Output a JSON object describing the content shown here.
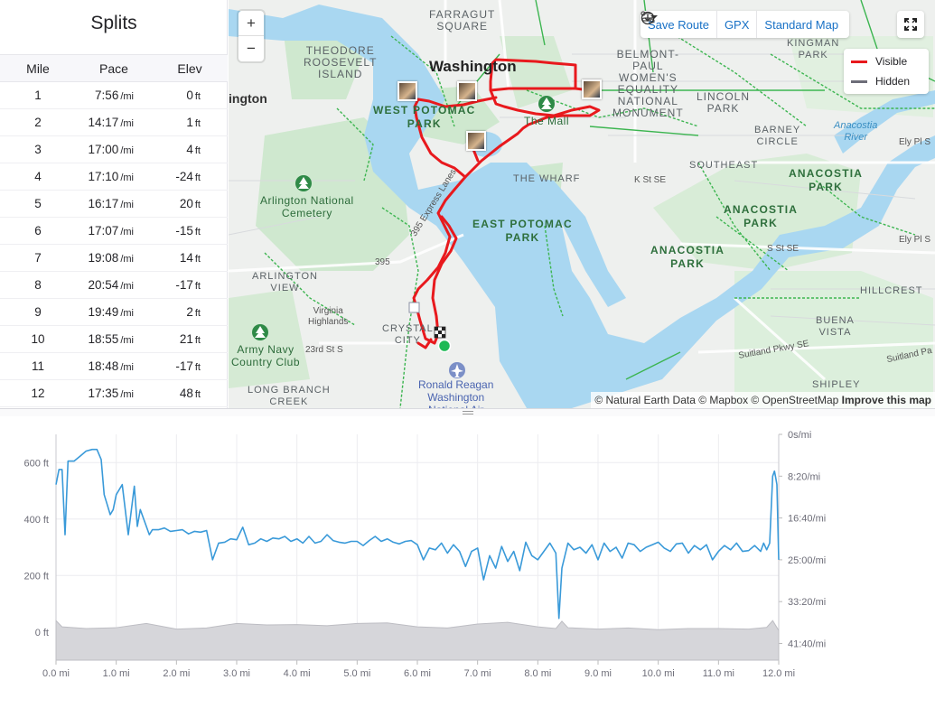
{
  "splits": {
    "title": "Splits",
    "headers": [
      "Mile",
      "Pace",
      "Elev"
    ],
    "pace_unit": "/mi",
    "elev_unit": "ft",
    "rows": [
      {
        "mile": "1",
        "pace": "7:56",
        "elev": "0"
      },
      {
        "mile": "2",
        "pace": "14:17",
        "elev": "1"
      },
      {
        "mile": "3",
        "pace": "17:00",
        "elev": "4"
      },
      {
        "mile": "4",
        "pace": "17:10",
        "elev": "-24"
      },
      {
        "mile": "5",
        "pace": "16:17",
        "elev": "20"
      },
      {
        "mile": "6",
        "pace": "17:07",
        "elev": "-15"
      },
      {
        "mile": "7",
        "pace": "19:08",
        "elev": "14"
      },
      {
        "mile": "8",
        "pace": "20:54",
        "elev": "-17"
      },
      {
        "mile": "9",
        "pace": "19:49",
        "elev": "2"
      },
      {
        "mile": "10",
        "pace": "18:55",
        "elev": "21"
      },
      {
        "mile": "11",
        "pace": "18:48",
        "elev": "-17"
      },
      {
        "mile": "12",
        "pace": "17:35",
        "elev": "48"
      }
    ]
  },
  "map": {
    "zoom_in": "+",
    "zoom_out": "−",
    "toolbar": {
      "save_route": "Save Route",
      "gpx": "GPX",
      "map_style": "Standard Map"
    },
    "legend": {
      "visible": "Visible",
      "hidden": "Hidden",
      "visible_color": "#e8191d",
      "hidden_color": "#6d6d78"
    },
    "attribution": {
      "text": "© Natural Earth Data © Mapbox © OpenStreetMap",
      "improve": "Improve this map"
    },
    "labels": {
      "farragut": "FARRAGUT\nSQUARE",
      "washington": "Washington",
      "theodore": "THEODORE\nROOSEVELT\nISLAND",
      "belmont": "BELMONT-\nPAUL\nWOMEN'S\nEQUALITY\nNATIONAL\nMONUMENT",
      "kingman": "KINGMAN\nPARK",
      "lincoln": "LINCOLN\nPARK",
      "west_potomac": "WEST POTOMAC\nPARK",
      "the_mall": "The Mall",
      "barney": "BARNEY\nCIRCLE",
      "anacostia_river": "Anacostia\nRiver",
      "ington": "ington",
      "the_wharf": "THE WHARF",
      "southeast": "SOUTHEAST",
      "k_st": "K St SE",
      "anacostia_park1": "ANACOSTIA\nPARK",
      "anacostia_park2": "ANACOSTIA\nPARK",
      "anacostia_park3": "ANACOSTIA\nPARK",
      "arlington_cem": "Arlington National\nCemetery",
      "east_potomac": "EAST POTOMAC\nPARK",
      "express": "395 Express Lanes",
      "route395": "395",
      "s_st": "S St SE",
      "arlington_view": "ARLINGTON\nVIEW",
      "virginia": "Virginia\nHighlands",
      "crystal": "CRYSTAL\nCITY",
      "hillcrest": "HILLCREST",
      "buena": "BUENA\nVISTA",
      "suitland": "Suitland Pkwy SE",
      "suitland2": "Suitland Pa",
      "army_navy": "Army Navy\nCountry Club",
      "st23": "23rd St S",
      "long_branch": "LONG BRANCH\nCREEK",
      "reagan": "Ronald Reagan\nWashington\nNational Air",
      "shipley": "SHIPLEY",
      "ely": "Ely Pl S",
      "ely2": "Ely Pl S"
    }
  },
  "chart_data": {
    "type": "line",
    "x_label_ticks": [
      "0.0 mi",
      "1.0 mi",
      "2.0 mi",
      "3.0 mi",
      "4.0 mi",
      "5.0 mi",
      "6.0 mi",
      "7.0 mi",
      "8.0 mi",
      "9.0 mi",
      "10.0 mi",
      "11.0 mi",
      "12.0 mi"
    ],
    "xlim": [
      0,
      12.0
    ],
    "y_left": {
      "ticks": [
        "0 ft",
        "200 ft",
        "400 ft",
        "600 ft"
      ],
      "range": [
        -100,
        700
      ]
    },
    "y_right": {
      "ticks": [
        "0s/mi",
        "8:20/mi",
        "16:40/mi",
        "25:00/mi",
        "33:20/mi",
        "41:40/mi"
      ],
      "range_seconds_per_mi": [
        0,
        2700
      ]
    },
    "series": [
      {
        "kind": "pace",
        "color": "#3a9ad9",
        "x": [
          0.0,
          0.05,
          0.1,
          0.15,
          0.2,
          0.3,
          0.4,
          0.5,
          0.6,
          0.68,
          0.75,
          0.8,
          0.85,
          0.9,
          0.95,
          1.0,
          1.1,
          1.2,
          1.3,
          1.35,
          1.4,
          1.5,
          1.55,
          1.6,
          1.7,
          1.8,
          1.9,
          2.0,
          2.1,
          2.2,
          2.3,
          2.4,
          2.5,
          2.6,
          2.7,
          2.8,
          2.9,
          3.0,
          3.1,
          3.2,
          3.3,
          3.4,
          3.5,
          3.6,
          3.7,
          3.8,
          3.9,
          4.0,
          4.1,
          4.2,
          4.3,
          4.4,
          4.5,
          4.6,
          4.7,
          4.8,
          4.9,
          5.0,
          5.1,
          5.2,
          5.3,
          5.4,
          5.5,
          5.6,
          5.7,
          5.8,
          5.9,
          6.0,
          6.1,
          6.2,
          6.3,
          6.4,
          6.5,
          6.6,
          6.7,
          6.8,
          6.9,
          7.0,
          7.1,
          7.2,
          7.3,
          7.4,
          7.5,
          7.6,
          7.7,
          7.8,
          7.9,
          8.0,
          8.1,
          8.2,
          8.3,
          8.35,
          8.4,
          8.5,
          8.6,
          8.7,
          8.8,
          8.9,
          9.0,
          9.1,
          9.2,
          9.3,
          9.4,
          9.5,
          9.6,
          9.7,
          9.8,
          9.9,
          10.0,
          10.1,
          10.2,
          10.3,
          10.4,
          10.5,
          10.6,
          10.7,
          10.8,
          10.9,
          11.0,
          11.1,
          11.2,
          11.3,
          11.4,
          11.5,
          11.6,
          11.7,
          11.75,
          11.8,
          11.85,
          11.9,
          11.93,
          11.95,
          11.97,
          12.0
        ],
        "y_sec_per_mi": [
          600,
          420,
          420,
          1200,
          320,
          320,
          260,
          200,
          180,
          180,
          300,
          720,
          840,
          960,
          900,
          720,
          600,
          1200,
          620,
          1100,
          900,
          1100,
          1200,
          1140,
          1140,
          1120,
          1160,
          1150,
          1140,
          1190,
          1160,
          1170,
          1150,
          1500,
          1300,
          1290,
          1250,
          1260,
          1110,
          1320,
          1300,
          1250,
          1280,
          1240,
          1250,
          1220,
          1280,
          1250,
          1300,
          1220,
          1300,
          1280,
          1200,
          1270,
          1290,
          1300,
          1280,
          1280,
          1330,
          1270,
          1220,
          1280,
          1250,
          1290,
          1310,
          1280,
          1270,
          1320,
          1500,
          1360,
          1380,
          1300,
          1420,
          1320,
          1400,
          1580,
          1400,
          1360,
          1740,
          1450,
          1600,
          1340,
          1520,
          1400,
          1630,
          1290,
          1450,
          1500,
          1400,
          1300,
          1420,
          2200,
          1600,
          1300,
          1380,
          1350,
          1420,
          1320,
          1500,
          1300,
          1400,
          1350,
          1480,
          1300,
          1320,
          1400,
          1350,
          1320,
          1290,
          1360,
          1400,
          1310,
          1300,
          1420,
          1330,
          1380,
          1320,
          1500,
          1400,
          1330,
          1380,
          1300,
          1400,
          1390,
          1330,
          1400,
          1300,
          1380,
          1300,
          500,
          440,
          520,
          600,
          1500,
          2700,
          1800,
          660
        ]
      },
      {
        "kind": "elevation",
        "color": "#c8c8ce",
        "x": [
          0.0,
          0.1,
          0.5,
          1.0,
          1.5,
          2.0,
          2.5,
          3.0,
          3.5,
          4.0,
          4.5,
          5.0,
          5.5,
          6.0,
          6.5,
          7.0,
          7.5,
          8.0,
          8.3,
          8.4,
          8.5,
          9.0,
          9.5,
          10.0,
          10.5,
          11.0,
          11.5,
          11.8,
          11.9,
          12.0
        ],
        "y_ft": [
          40,
          18,
          12,
          15,
          30,
          10,
          14,
          30,
          25,
          26,
          22,
          30,
          32,
          18,
          14,
          28,
          34,
          18,
          12,
          38,
          15,
          10,
          14,
          8,
          12,
          12,
          10,
          16,
          40,
          5
        ]
      }
    ]
  }
}
